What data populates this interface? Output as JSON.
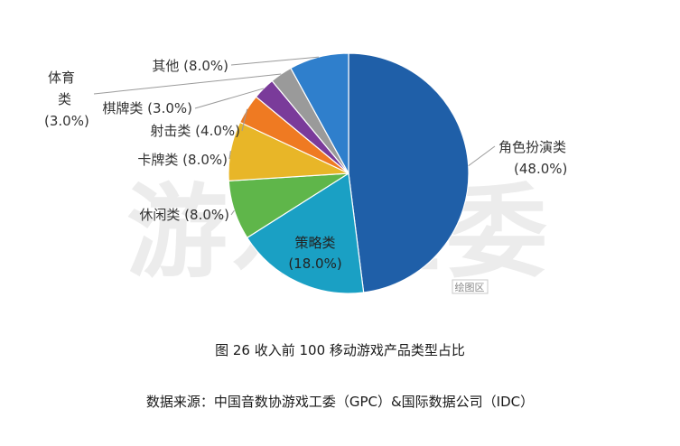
{
  "watermark": "游戏工委",
  "plot_area_badge": "绘图区",
  "caption": {
    "title": "图 26  收入前 100 移动游戏产品类型占比",
    "source": "数据来源：中国音数协游戏工委（GPC）&国际数据公司（IDC）"
  },
  "chart_data": {
    "type": "pie",
    "title": "图 26  收入前 100 移动游戏产品类型占比",
    "slices": [
      {
        "label": "角色扮演类",
        "value": 48.0,
        "display": "(48.0%)",
        "color": "#1f5fa8"
      },
      {
        "label": "策略类",
        "value": 18.0,
        "display": "(18.0%)",
        "color": "#1aa0c4"
      },
      {
        "label": "休闲类",
        "value": 8.0,
        "display": "休闲类 (8.0%)",
        "color": "#5fb64a"
      },
      {
        "label": "卡牌类",
        "value": 8.0,
        "display": "卡牌类 (8.0%)",
        "color": "#e8b628"
      },
      {
        "label": "射击类",
        "value": 4.0,
        "display": "射击类 (4.0%)",
        "color": "#ef7a22"
      },
      {
        "label": "棋牌类",
        "value": 3.0,
        "display": "棋牌类 (3.0%)",
        "color": "#7a3b9a"
      },
      {
        "label": "体育类",
        "value": 3.0,
        "display": "(3.0%)",
        "color": "#9a9a9a"
      },
      {
        "label": "其他",
        "value": 8.0,
        "display": "其他 (8.0%)",
        "color": "#2f7fcc"
      }
    ]
  }
}
